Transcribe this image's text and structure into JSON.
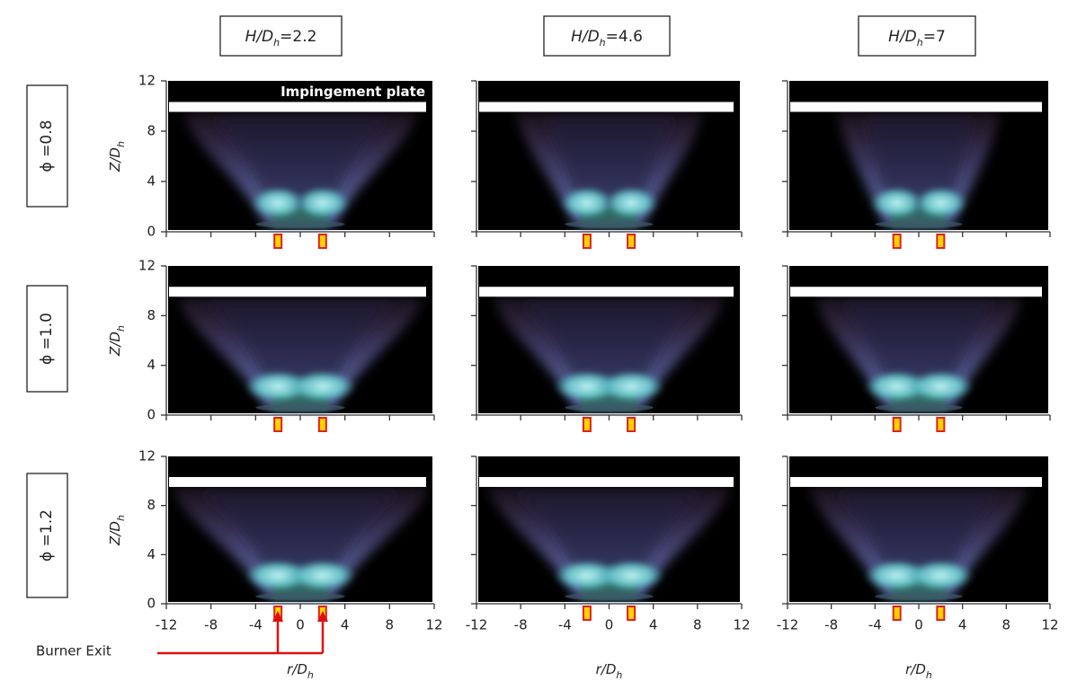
{
  "column_headers": [
    {
      "symbol": "H/D",
      "subscript": "h",
      "value": "=2.2"
    },
    {
      "symbol": "H/D",
      "subscript": "h",
      "value": "=4.6"
    },
    {
      "symbol": "H/D",
      "subscript": "h",
      "value": "=7"
    }
  ],
  "row_labels": [
    "ϕ =0.8",
    "ϕ =1.0",
    "ϕ =1.2"
  ],
  "axes": {
    "xlim": [
      -12,
      12
    ],
    "ylim": [
      0,
      12
    ],
    "xticks": [
      -12,
      -8,
      -4,
      0,
      4,
      8,
      12
    ],
    "yticks": [
      0,
      4,
      8,
      12
    ],
    "y_label": {
      "symbol": "Z/D",
      "subscript": "h"
    },
    "x_label": {
      "symbol": "r/D",
      "subscript": "h"
    }
  },
  "annotations": {
    "plate": "Impingement plate",
    "burner_exit": "Burner Exit"
  }
}
